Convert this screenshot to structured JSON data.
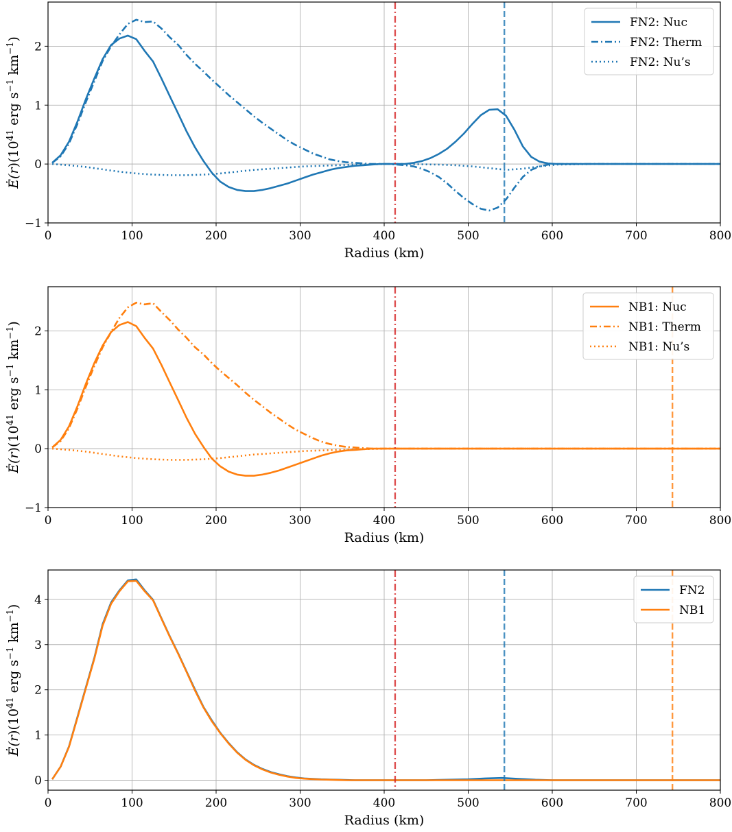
{
  "colors": {
    "blue": "#1f77b4",
    "orange": "#ff7f0e",
    "red": "#d62728",
    "grid": "#b0b0b0"
  },
  "chart_data": [
    {
      "type": "line",
      "xlabel": "Radius (km)",
      "ylabel": "Ė(r)(10^41 erg s^-1 km^-1)",
      "xlim": [
        0,
        800
      ],
      "ylim": [
        -1,
        2.75
      ],
      "xticks": [
        0,
        100,
        200,
        300,
        400,
        500,
        600,
        700,
        800
      ],
      "yticks": [
        -1,
        0,
        1,
        2
      ],
      "grid": true,
      "legend_position": "top-right",
      "vlines": [
        {
          "x": 413,
          "color": "red",
          "style": "dashdot"
        },
        {
          "x": 543,
          "color": "blue",
          "style": "dashed"
        }
      ],
      "series": [
        {
          "name": "FN2: Nuc",
          "color": "blue",
          "style": "solid",
          "x": [
            5,
            15,
            25,
            35,
            45,
            55,
            65,
            75,
            85,
            95,
            105,
            115,
            125,
            135,
            145,
            155,
            165,
            175,
            185,
            195,
            205,
            215,
            225,
            235,
            245,
            255,
            265,
            275,
            285,
            295,
            305,
            315,
            325,
            335,
            345,
            355,
            365,
            375,
            385,
            395,
            405,
            415,
            425,
            435,
            445,
            455,
            465,
            475,
            485,
            495,
            505,
            515,
            525,
            535,
            545,
            555,
            565,
            575,
            585,
            595,
            605,
            650,
            700,
            750,
            800
          ],
          "y": [
            0.02,
            0.15,
            0.38,
            0.72,
            1.1,
            1.45,
            1.78,
            2.02,
            2.13,
            2.18,
            2.12,
            1.92,
            1.74,
            1.45,
            1.15,
            0.85,
            0.55,
            0.28,
            0.05,
            -0.15,
            -0.3,
            -0.39,
            -0.44,
            -0.46,
            -0.46,
            -0.44,
            -0.41,
            -0.37,
            -0.33,
            -0.28,
            -0.23,
            -0.18,
            -0.14,
            -0.1,
            -0.07,
            -0.05,
            -0.03,
            -0.02,
            -0.01,
            0,
            0,
            0,
            0,
            0.02,
            0.05,
            0.1,
            0.17,
            0.26,
            0.38,
            0.52,
            0.68,
            0.83,
            0.92,
            0.93,
            0.82,
            0.58,
            0.3,
            0.12,
            0.04,
            0.01,
            0,
            0,
            0,
            0,
            0
          ]
        },
        {
          "name": "FN2: Therm",
          "color": "blue",
          "style": "dashdot",
          "x": [
            5,
            15,
            25,
            35,
            45,
            55,
            65,
            75,
            85,
            95,
            105,
            115,
            125,
            135,
            145,
            155,
            165,
            175,
            185,
            195,
            205,
            215,
            225,
            235,
            245,
            255,
            265,
            275,
            285,
            295,
            305,
            315,
            325,
            335,
            345,
            355,
            365,
            375,
            385,
            395,
            405,
            415,
            425,
            435,
            445,
            455,
            465,
            475,
            485,
            495,
            505,
            515,
            525,
            535,
            545,
            555,
            565,
            575,
            585,
            595,
            605,
            650,
            700,
            750,
            800
          ],
          "y": [
            0.02,
            0.13,
            0.35,
            0.68,
            1.05,
            1.4,
            1.75,
            2.0,
            2.2,
            2.38,
            2.45,
            2.41,
            2.42,
            2.3,
            2.15,
            2.02,
            1.85,
            1.7,
            1.57,
            1.43,
            1.3,
            1.17,
            1.05,
            0.93,
            0.81,
            0.7,
            0.6,
            0.5,
            0.4,
            0.32,
            0.25,
            0.18,
            0.13,
            0.08,
            0.05,
            0.03,
            0.02,
            0.01,
            0,
            0,
            0,
            -0.01,
            -0.02,
            -0.04,
            -0.08,
            -0.14,
            -0.22,
            -0.33,
            -0.46,
            -0.58,
            -0.68,
            -0.76,
            -0.79,
            -0.74,
            -0.6,
            -0.4,
            -0.22,
            -0.1,
            -0.04,
            -0.01,
            0,
            0,
            0,
            0,
            0
          ]
        },
        {
          "name": "FN2: Nu’s",
          "color": "blue",
          "style": "dotted",
          "x": [
            5,
            25,
            45,
            65,
            85,
            105,
            125,
            145,
            165,
            185,
            205,
            225,
            245,
            265,
            285,
            305,
            325,
            345,
            365,
            385,
            405,
            425,
            445,
            465,
            485,
            505,
            525,
            545,
            565,
            585,
            605,
            650,
            700,
            750,
            800
          ],
          "y": [
            0,
            -0.02,
            -0.05,
            -0.09,
            -0.13,
            -0.16,
            -0.18,
            -0.19,
            -0.19,
            -0.18,
            -0.16,
            -0.13,
            -0.1,
            -0.08,
            -0.06,
            -0.04,
            -0.03,
            -0.02,
            -0.01,
            -0.005,
            0,
            0,
            -0.005,
            -0.01,
            -0.02,
            -0.04,
            -0.07,
            -0.1,
            -0.08,
            -0.04,
            -0.01,
            0,
            0,
            0,
            0
          ]
        }
      ]
    },
    {
      "type": "line",
      "xlabel": "Radius (km)",
      "ylabel": "Ė(r)(10^41 erg s^-1 km^-1)",
      "xlim": [
        0,
        800
      ],
      "ylim": [
        -1,
        2.75
      ],
      "xticks": [
        0,
        100,
        200,
        300,
        400,
        500,
        600,
        700,
        800
      ],
      "yticks": [
        -1,
        0,
        1,
        2
      ],
      "grid": true,
      "legend_position": "top-right",
      "vlines": [
        {
          "x": 413,
          "color": "red",
          "style": "dashdot"
        },
        {
          "x": 743,
          "color": "orange",
          "style": "dashed"
        }
      ],
      "series": [
        {
          "name": "NB1: Nuc",
          "color": "orange",
          "style": "solid",
          "x": [
            5,
            15,
            25,
            35,
            45,
            55,
            65,
            75,
            85,
            95,
            105,
            115,
            125,
            135,
            145,
            155,
            165,
            175,
            185,
            195,
            205,
            215,
            225,
            235,
            245,
            255,
            265,
            275,
            285,
            295,
            305,
            315,
            325,
            335,
            345,
            355,
            365,
            375,
            385,
            395,
            405,
            500,
            600,
            700,
            800
          ],
          "y": [
            0.02,
            0.15,
            0.38,
            0.72,
            1.1,
            1.45,
            1.75,
            1.98,
            2.1,
            2.15,
            2.08,
            1.88,
            1.7,
            1.42,
            1.12,
            0.82,
            0.52,
            0.25,
            0.03,
            -0.17,
            -0.3,
            -0.39,
            -0.44,
            -0.46,
            -0.46,
            -0.44,
            -0.41,
            -0.37,
            -0.32,
            -0.27,
            -0.22,
            -0.17,
            -0.12,
            -0.08,
            -0.05,
            -0.03,
            -0.02,
            -0.01,
            0,
            0,
            0,
            0,
            0,
            0,
            0
          ]
        },
        {
          "name": "NB1: Therm",
          "color": "orange",
          "style": "dashdot",
          "x": [
            5,
            15,
            25,
            35,
            45,
            55,
            65,
            75,
            85,
            95,
            105,
            115,
            125,
            135,
            145,
            155,
            165,
            175,
            185,
            195,
            205,
            215,
            225,
            235,
            245,
            255,
            265,
            275,
            285,
            295,
            305,
            315,
            325,
            335,
            345,
            355,
            365,
            375,
            385,
            395,
            405,
            500,
            600,
            700,
            800
          ],
          "y": [
            0.02,
            0.13,
            0.35,
            0.68,
            1.05,
            1.4,
            1.72,
            1.98,
            2.22,
            2.4,
            2.48,
            2.45,
            2.47,
            2.32,
            2.18,
            2.02,
            1.88,
            1.72,
            1.6,
            1.45,
            1.32,
            1.2,
            1.08,
            0.95,
            0.83,
            0.72,
            0.61,
            0.51,
            0.41,
            0.32,
            0.25,
            0.18,
            0.12,
            0.08,
            0.05,
            0.03,
            0.02,
            0.01,
            0,
            0,
            0,
            0,
            0,
            0,
            0
          ]
        },
        {
          "name": "NB1: Nu’s",
          "color": "orange",
          "style": "dotted",
          "x": [
            5,
            25,
            45,
            65,
            85,
            105,
            125,
            145,
            165,
            185,
            205,
            225,
            245,
            265,
            285,
            305,
            325,
            345,
            365,
            385,
            405,
            500,
            600,
            700,
            800
          ],
          "y": [
            0,
            -0.02,
            -0.05,
            -0.09,
            -0.13,
            -0.16,
            -0.18,
            -0.19,
            -0.19,
            -0.18,
            -0.16,
            -0.13,
            -0.1,
            -0.08,
            -0.06,
            -0.04,
            -0.03,
            -0.02,
            -0.01,
            -0.005,
            0,
            0,
            0,
            0,
            0
          ]
        }
      ]
    },
    {
      "type": "line",
      "xlabel": "Radius (km)",
      "ylabel": "Ė(r)(10^41 erg s^-1 km^-1)",
      "xlim": [
        0,
        800
      ],
      "ylim": [
        -0.22,
        4.65
      ],
      "xticks": [
        0,
        100,
        200,
        300,
        400,
        500,
        600,
        700,
        800
      ],
      "yticks": [
        0,
        1,
        2,
        3,
        4
      ],
      "grid": true,
      "legend_position": "top-right",
      "vlines": [
        {
          "x": 413,
          "color": "red",
          "style": "dashdot"
        },
        {
          "x": 543,
          "color": "blue",
          "style": "dashed"
        },
        {
          "x": 743,
          "color": "orange",
          "style": "dashed"
        }
      ],
      "series": [
        {
          "name": "FN2",
          "color": "blue",
          "style": "solid",
          "x": [
            5,
            15,
            25,
            35,
            45,
            55,
            65,
            75,
            85,
            95,
            105,
            115,
            125,
            135,
            145,
            155,
            165,
            175,
            185,
            195,
            205,
            215,
            225,
            235,
            245,
            255,
            265,
            275,
            285,
            295,
            305,
            315,
            325,
            335,
            345,
            355,
            365,
            375,
            385,
            395,
            405,
            450,
            500,
            520,
            540,
            560,
            580,
            600,
            650,
            700,
            750,
            800
          ],
          "y": [
            0.02,
            0.3,
            0.75,
            1.4,
            2.05,
            2.7,
            3.45,
            3.93,
            4.2,
            4.42,
            4.44,
            4.2,
            3.99,
            3.58,
            3.18,
            2.8,
            2.4,
            2.0,
            1.62,
            1.32,
            1.05,
            0.82,
            0.62,
            0.46,
            0.34,
            0.25,
            0.18,
            0.13,
            0.09,
            0.06,
            0.04,
            0.03,
            0.02,
            0.015,
            0.01,
            0.005,
            0,
            0,
            0,
            0,
            0,
            0,
            0.02,
            0.04,
            0.05,
            0.03,
            0.01,
            0,
            0,
            0,
            0,
            0
          ]
        },
        {
          "name": "NB1",
          "color": "orange",
          "style": "solid",
          "x": [
            5,
            15,
            25,
            35,
            45,
            55,
            65,
            75,
            85,
            95,
            105,
            115,
            125,
            135,
            145,
            155,
            165,
            175,
            185,
            195,
            205,
            215,
            225,
            235,
            245,
            255,
            265,
            275,
            285,
            295,
            305,
            315,
            325,
            335,
            345,
            355,
            365,
            375,
            385,
            395,
            405,
            500,
            600,
            700,
            800
          ],
          "y": [
            0.02,
            0.3,
            0.74,
            1.38,
            2.03,
            2.68,
            3.42,
            3.9,
            4.18,
            4.4,
            4.41,
            4.18,
            3.98,
            3.57,
            3.17,
            2.79,
            2.39,
            1.98,
            1.61,
            1.3,
            1.04,
            0.81,
            0.61,
            0.45,
            0.33,
            0.24,
            0.17,
            0.12,
            0.08,
            0.05,
            0.035,
            0.025,
            0.015,
            0.01,
            0.005,
            0,
            0,
            0,
            0,
            0,
            0,
            0,
            0,
            0,
            0
          ]
        }
      ]
    }
  ]
}
